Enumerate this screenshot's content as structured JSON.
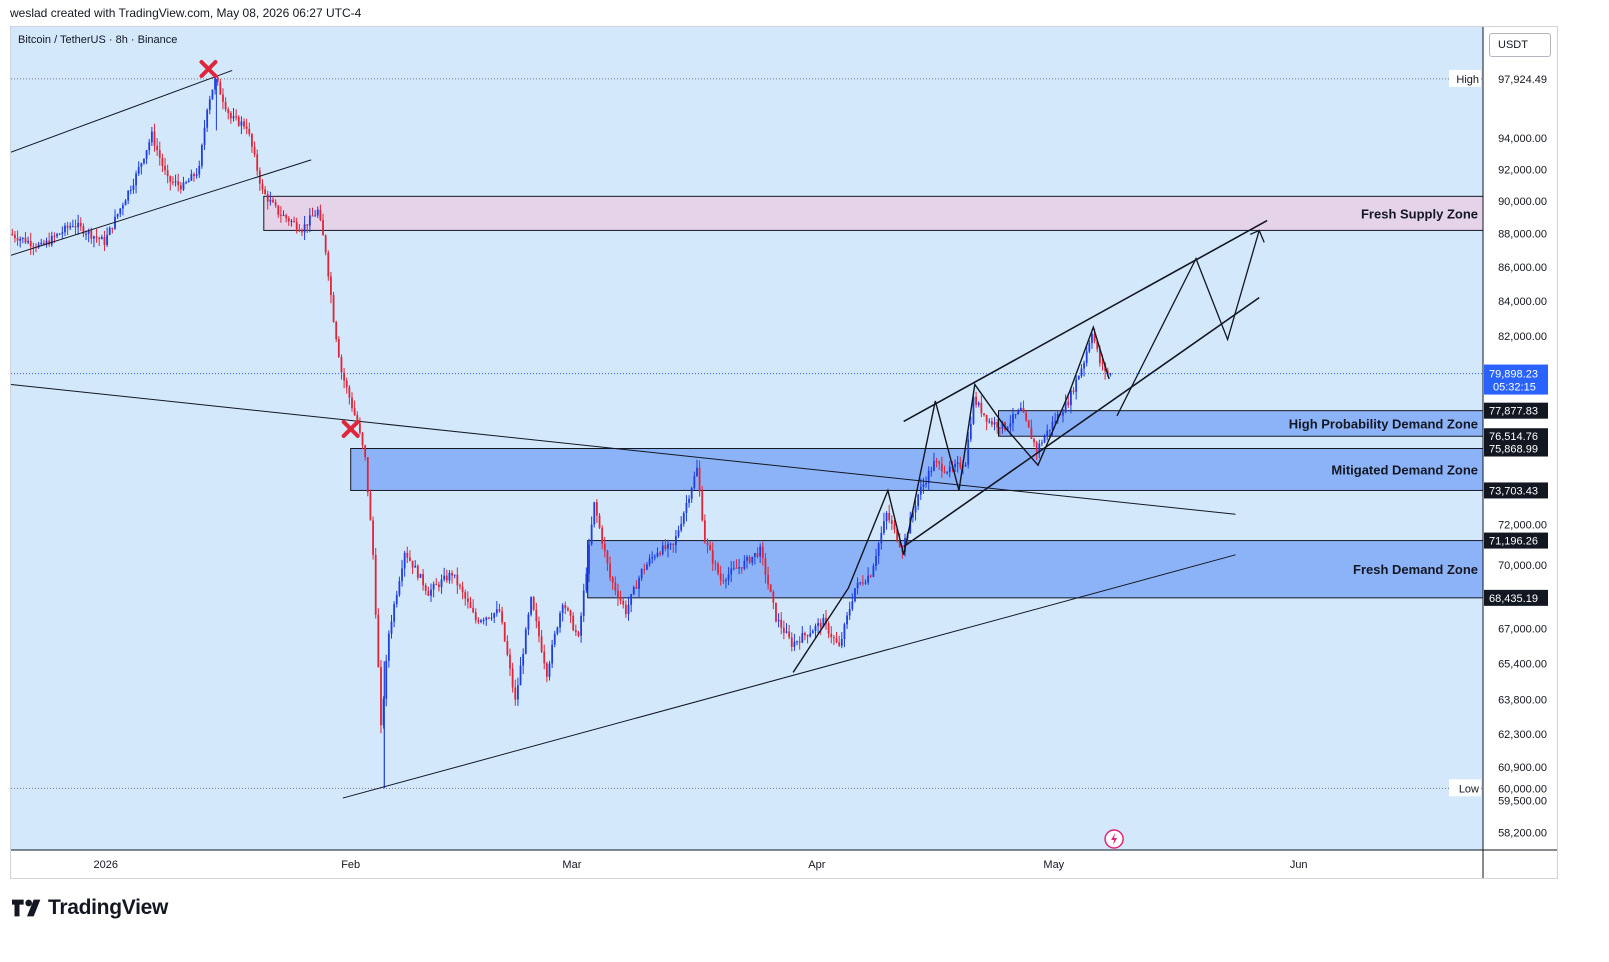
{
  "header": {
    "attribution": "weslad created with TradingView.com, May 08, 2026 06:27 UTC-4"
  },
  "symbol": "Bitcoin / TetherUS · 8h · Binance",
  "currency_button": "USDT",
  "brand": {
    "name": "TradingView",
    "logo_icon": "tradingview-logo-icon"
  },
  "colors": {
    "background": "#d3e8fb",
    "up_candle": "#1e3ee0",
    "down_candle": "#e0253a",
    "zone_fill": "#7fa9f7",
    "supply_fill": "#e5d3ea",
    "projection": "#131722",
    "last_price": "#2962ff"
  },
  "chart_data": {
    "type": "candlestick",
    "x_tick_labels": [
      "2026",
      "Feb",
      "Mar",
      "Apr",
      "May",
      "Jun"
    ],
    "y_tick_labels": [
      "94,000.00",
      "92,000.00",
      "90,000.00",
      "88,000.00",
      "86,000.00",
      "84,000.00",
      "82,000.00",
      "72,000.00",
      "70,000.00",
      "67,000.00",
      "65,400.00",
      "63,800.00",
      "62,300.00",
      "60,900.00",
      "59,500.00",
      "58,200.00"
    ],
    "y_scale": "log",
    "y_range": [
      57500,
      101500
    ],
    "price_labels": [
      {
        "id": "high",
        "value": 97924.49,
        "text": "97,924.49",
        "tag": "High",
        "style": "plain"
      },
      {
        "id": "last",
        "value": 79898.23,
        "text": "79,898.23",
        "countdown": "05:32:15",
        "style": "blue"
      },
      {
        "id": "hpdz-top",
        "value": 77877.83,
        "text": "77,877.83",
        "style": "dark"
      },
      {
        "id": "hpdz-bot",
        "value": 76514.76,
        "text": "76,514.76",
        "style": "dark"
      },
      {
        "id": "mdz-top",
        "value": 75868.99,
        "text": "75,868.99",
        "style": "dark"
      },
      {
        "id": "mdz-bot",
        "value": 73703.43,
        "text": "73,703.43",
        "style": "dark"
      },
      {
        "id": "fdz-top",
        "value": 71196.26,
        "text": "71,196.26",
        "style": "dark"
      },
      {
        "id": "fdz-bot",
        "value": 68435.19,
        "text": "68,435.19",
        "style": "dark"
      },
      {
        "id": "low",
        "value": 60000.0,
        "text": "60,000.00",
        "tag": "Low",
        "style": "plain"
      }
    ],
    "zones": [
      {
        "name": "Fresh Supply Zone",
        "low": 88200,
        "high": 90300,
        "start": "2026-01-21",
        "kind": "supply"
      },
      {
        "name": "High Probability Demand Zone",
        "low": 76514.76,
        "high": 77877.83,
        "start": "2026-04-24",
        "kind": "demand"
      },
      {
        "name": "Mitigated Demand Zone",
        "low": 73703.43,
        "high": 75868.99,
        "start": "2026-02-01",
        "kind": "demand"
      },
      {
        "name": "Fresh Demand Zone",
        "low": 68435.19,
        "high": 71196.26,
        "start": "2026-03-03",
        "kind": "demand"
      }
    ],
    "markers": [
      {
        "type": "x",
        "date": "2026-01-14",
        "price": 98600
      },
      {
        "type": "x",
        "date": "2026-02-01",
        "price": 76900
      }
    ],
    "trendlines": [
      {
        "from": [
          "2025-12-20",
          93100
        ],
        "to": [
          "2026-01-17",
          98500
        ]
      },
      {
        "from": [
          "2025-12-20",
          86700
        ],
        "to": [
          "2026-01-27",
          92600
        ]
      },
      {
        "from": [
          "2025-12-20",
          79300
        ],
        "to": [
          "2026-05-24",
          72500
        ]
      },
      {
        "from": [
          "2026-01-31",
          59600
        ],
        "to": [
          "2026-05-24",
          70500
        ]
      },
      {
        "from": [
          "2026-04-12",
          77300
        ],
        "to": [
          "2026-05-28",
          88800
        ]
      },
      {
        "from": [
          "2026-04-12",
          70900
        ],
        "to": [
          "2026-05-27",
          84200
        ]
      }
    ],
    "projection_path": [
      [
        "2026-05-09",
        77600
      ],
      [
        "2026-05-19",
        86500
      ],
      [
        "2026-05-23",
        81800
      ],
      [
        "2026-05-27",
        88200
      ]
    ],
    "swing_path": [
      [
        "2026-03-29",
        65000
      ],
      [
        "2026-04-05",
        68900
      ],
      [
        "2026-04-10",
        73700
      ],
      [
        "2026-04-12",
        70500
      ],
      [
        "2026-04-16",
        78400
      ],
      [
        "2026-04-19",
        73700
      ],
      [
        "2026-04-21",
        79300
      ],
      [
        "2026-04-25",
        76900
      ],
      [
        "2026-04-29",
        75000
      ],
      [
        "2026-05-03",
        78900
      ],
      [
        "2026-05-06",
        82500
      ],
      [
        "2026-05-08",
        79600
      ]
    ],
    "price_path": [
      [
        "2025-12-20",
        88000
      ],
      [
        "2025-12-24",
        87200
      ],
      [
        "2025-12-28",
        88600
      ],
      [
        "2026-01-01",
        87500
      ],
      [
        "2026-01-05",
        91600
      ],
      [
        "2026-01-07",
        94200
      ],
      [
        "2026-01-09",
        91300
      ],
      [
        "2026-01-11",
        90900
      ],
      [
        "2026-01-13",
        92000
      ],
      [
        "2026-01-14",
        96100
      ],
      [
        "2026-01-15",
        97900
      ],
      [
        "2026-01-17",
        95300
      ],
      [
        "2026-01-19",
        94800
      ],
      [
        "2026-01-21",
        90600
      ],
      [
        "2026-01-23",
        89300
      ],
      [
        "2026-01-26",
        88300
      ],
      [
        "2026-01-28",
        89400
      ],
      [
        "2026-01-29",
        87000
      ],
      [
        "2026-01-30",
        83000
      ],
      [
        "2026-01-31",
        80000
      ],
      [
        "2026-02-02",
        77200
      ],
      [
        "2026-02-03",
        75300
      ],
      [
        "2026-02-04",
        70500
      ],
      [
        "2026-02-05",
        62500
      ],
      [
        "2026-02-06",
        66800
      ],
      [
        "2026-02-08",
        70700
      ],
      [
        "2026-02-11",
        68700
      ],
      [
        "2026-02-14",
        69600
      ],
      [
        "2026-02-17",
        67400
      ],
      [
        "2026-02-20",
        67800
      ],
      [
        "2026-02-22",
        63700
      ],
      [
        "2026-02-24",
        68300
      ],
      [
        "2026-02-26",
        65000
      ],
      [
        "2026-02-28",
        68300
      ],
      [
        "2026-03-02",
        66500
      ],
      [
        "2026-03-04",
        73000
      ],
      [
        "2026-03-06",
        69400
      ],
      [
        "2026-03-08",
        67800
      ],
      [
        "2026-03-10",
        69700
      ],
      [
        "2026-03-12",
        70700
      ],
      [
        "2026-03-14",
        70900
      ],
      [
        "2026-03-17",
        74800
      ],
      [
        "2026-03-18",
        71200
      ],
      [
        "2026-03-20",
        69300
      ],
      [
        "2026-03-23",
        70100
      ],
      [
        "2026-03-25",
        70700
      ],
      [
        "2026-03-27",
        67500
      ],
      [
        "2026-03-29",
        66300
      ],
      [
        "2026-03-31",
        66800
      ],
      [
        "2026-04-02",
        67300
      ],
      [
        "2026-04-04",
        66100
      ],
      [
        "2026-04-06",
        68900
      ],
      [
        "2026-04-08",
        69600
      ],
      [
        "2026-04-10",
        72500
      ],
      [
        "2026-04-12",
        70800
      ],
      [
        "2026-04-14",
        73500
      ],
      [
        "2026-04-16",
        75100
      ],
      [
        "2026-04-18",
        74700
      ],
      [
        "2026-04-20",
        75200
      ],
      [
        "2026-04-21",
        78500
      ],
      [
        "2026-04-23",
        77300
      ],
      [
        "2026-04-25",
        77000
      ],
      [
        "2026-04-27",
        77900
      ],
      [
        "2026-04-29",
        75800
      ],
      [
        "2026-05-01",
        77200
      ],
      [
        "2026-05-03",
        78400
      ],
      [
        "2026-05-05",
        80600
      ],
      [
        "2026-05-06",
        82300
      ],
      [
        "2026-05-07",
        80500
      ],
      [
        "2026-05-08",
        79898
      ]
    ]
  }
}
